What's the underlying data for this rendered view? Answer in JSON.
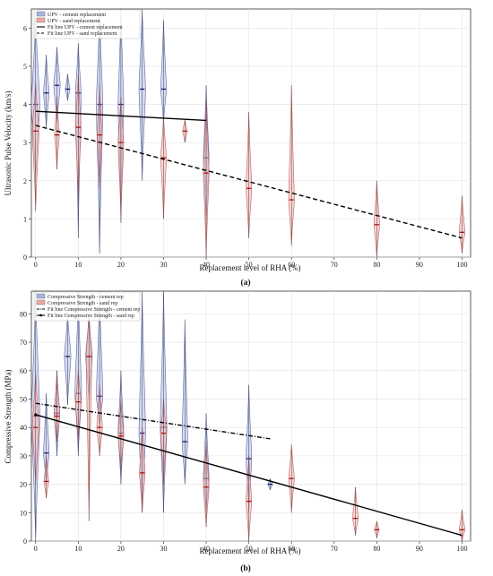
{
  "chart_data": [
    {
      "type": "violin",
      "caption": "(a)",
      "xlabel": "Replacement level of RHA (%)",
      "ylabel": "Ultrasonic Pulse Velocity (km/s)",
      "xlim": [
        -1,
        102
      ],
      "ylim": [
        0,
        6.5
      ],
      "xticks": [
        0,
        10,
        20,
        30,
        40,
        50,
        60,
        70,
        80,
        90,
        100
      ],
      "yticks": [
        0,
        1,
        2,
        3,
        4,
        5,
        6
      ],
      "grid": true,
      "legend_position": "top-left",
      "legend": [
        {
          "label": "UPV - cement replacement",
          "kind": "patch",
          "color": "#a8b4e0"
        },
        {
          "label": "UPV - sand replacement",
          "kind": "patch",
          "color": "#f0a8a0"
        },
        {
          "label": "Fit line UPV - cement replacement",
          "kind": "solid"
        },
        {
          "label": "Fit line UPV - sand replacement",
          "kind": "dashed"
        }
      ],
      "series": [
        {
          "name": "UPV - cement replacement",
          "color": "#7080c8",
          "values": [
            {
              "x": 0,
              "median": 4.0,
              "min": 2.0,
              "max": 6.3,
              "width": 1.8
            },
            {
              "x": 2.5,
              "median": 4.3,
              "min": 3.4,
              "max": 5.3,
              "width": 1.2
            },
            {
              "x": 5,
              "median": 4.5,
              "min": 3.5,
              "max": 5.5,
              "width": 1.4
            },
            {
              "x": 7.5,
              "median": 4.4,
              "min": 4.1,
              "max": 4.8,
              "width": 1.0
            },
            {
              "x": 10,
              "median": 4.3,
              "min": 0.5,
              "max": 5.6,
              "width": 1.2
            },
            {
              "x": 15,
              "median": 4.0,
              "min": 0.1,
              "max": 6.5,
              "width": 1.4
            },
            {
              "x": 20,
              "median": 4.0,
              "min": 0.9,
              "max": 6.5,
              "width": 1.2
            },
            {
              "x": 25,
              "median": 4.4,
              "min": 2.0,
              "max": 6.5,
              "width": 1.4
            },
            {
              "x": 30,
              "median": 4.4,
              "min": 3.5,
              "max": 6.2,
              "width": 1.2
            },
            {
              "x": 40,
              "median": 2.6,
              "min": 0.8,
              "max": 4.5,
              "width": 1.2
            }
          ]
        },
        {
          "name": "UPV - sand replacement",
          "color": "#e07070",
          "values": [
            {
              "x": 0,
              "median": 3.3,
              "min": 1.2,
              "max": 4.6,
              "width": 1.4
            },
            {
              "x": 5,
              "median": 3.2,
              "min": 2.3,
              "max": 4.2,
              "width": 1.0
            },
            {
              "x": 10,
              "median": 3.4,
              "min": 1.5,
              "max": 4.8,
              "width": 1.2
            },
            {
              "x": 15,
              "median": 3.2,
              "min": 1.8,
              "max": 4.5,
              "width": 1.0
            },
            {
              "x": 20,
              "median": 3.0,
              "min": 1.0,
              "max": 4.2,
              "width": 1.2
            },
            {
              "x": 30,
              "median": 2.6,
              "min": 1.0,
              "max": 3.7,
              "width": 1.2
            },
            {
              "x": 35,
              "median": 3.3,
              "min": 3.0,
              "max": 3.6,
              "width": 1.0
            },
            {
              "x": 40,
              "median": 2.2,
              "min": 0.0,
              "max": 4.2,
              "width": 1.2
            },
            {
              "x": 50,
              "median": 1.8,
              "min": 0.5,
              "max": 3.8,
              "width": 1.2
            },
            {
              "x": 60,
              "median": 1.5,
              "min": 0.3,
              "max": 4.5,
              "width": 1.2
            },
            {
              "x": 80,
              "median": 0.85,
              "min": 0.0,
              "max": 2.0,
              "width": 1.2
            },
            {
              "x": 100,
              "median": 0.65,
              "min": 0.1,
              "max": 1.6,
              "width": 1.2
            }
          ]
        }
      ],
      "fit_lines": [
        {
          "name": "Fit line UPV - cement replacement",
          "style": "solid",
          "x": [
            0,
            40
          ],
          "y": [
            3.82,
            3.58
          ]
        },
        {
          "name": "Fit line UPV - sand replacement",
          "style": "dashed",
          "x": [
            0,
            100
          ],
          "y": [
            3.45,
            0.5
          ]
        }
      ]
    },
    {
      "type": "violin",
      "caption": "(b)",
      "xlabel": "Replacement level of RHA (%)",
      "ylabel": "Compressive Strength (MPa)",
      "xlim": [
        -1,
        102
      ],
      "ylim": [
        0,
        88
      ],
      "xticks": [
        0,
        10,
        20,
        30,
        40,
        50,
        60,
        70,
        80,
        90,
        100
      ],
      "yticks": [
        0,
        10,
        20,
        30,
        40,
        50,
        60,
        70,
        80
      ],
      "grid": true,
      "legend_position": "top-left",
      "legend": [
        {
          "label": "Compressive Strength - cement rep",
          "kind": "patch",
          "color": "#a8b4e0"
        },
        {
          "label": "Compressive Strength - sand rep",
          "kind": "patch",
          "color": "#f0a8a0"
        },
        {
          "label": "Fit line Compressive Strength - cement rep",
          "kind": "dashdot"
        },
        {
          "label": "Fit line Compressive Strength - sand rep",
          "kind": "solid-marker"
        }
      ],
      "series": [
        {
          "name": "Compressive Strength - cement rep",
          "color": "#7080c8",
          "values": [
            {
              "x": 0,
              "median": 44,
              "min": 0,
              "max": 88,
              "width": 1.8
            },
            {
              "x": 2.5,
              "median": 31,
              "min": 20,
              "max": 52,
              "width": 1.2
            },
            {
              "x": 5,
              "median": 45,
              "min": 30,
              "max": 60,
              "width": 1.2
            },
            {
              "x": 7.5,
              "median": 65,
              "min": 48,
              "max": 80,
              "width": 1.4
            },
            {
              "x": 10,
              "median": 52,
              "min": 30,
              "max": 88,
              "width": 1.4
            },
            {
              "x": 12.5,
              "median": 65,
              "min": 50,
              "max": 80,
              "width": 1.4
            },
            {
              "x": 15,
              "median": 51,
              "min": 40,
              "max": 88,
              "width": 1.4
            },
            {
              "x": 20,
              "median": 38,
              "min": 20,
              "max": 60,
              "width": 1.2
            },
            {
              "x": 25,
              "median": 38,
              "min": 10,
              "max": 88,
              "width": 1.4
            },
            {
              "x": 30,
              "median": 40,
              "min": 10,
              "max": 88,
              "width": 1.4
            },
            {
              "x": 35,
              "median": 35,
              "min": 20,
              "max": 78,
              "width": 1.2
            },
            {
              "x": 40,
              "median": 22,
              "min": 10,
              "max": 45,
              "width": 1.2
            },
            {
              "x": 50,
              "median": 29,
              "min": 10,
              "max": 55,
              "width": 1.2
            },
            {
              "x": 55,
              "median": 20,
              "min": 18,
              "max": 22,
              "width": 1.0
            }
          ]
        },
        {
          "name": "Compressive Strength - sand rep",
          "color": "#e07070",
          "values": [
            {
              "x": 0,
              "median": 40,
              "min": 20,
              "max": 60,
              "width": 1.4
            },
            {
              "x": 2.5,
              "median": 21,
              "min": 15,
              "max": 30,
              "width": 1.0
            },
            {
              "x": 5,
              "median": 44,
              "min": 35,
              "max": 60,
              "width": 1.2
            },
            {
              "x": 10,
              "median": 49,
              "min": 35,
              "max": 60,
              "width": 1.2
            },
            {
              "x": 12.5,
              "median": 65,
              "min": 7,
              "max": 80,
              "width": 1.2
            },
            {
              "x": 15,
              "median": 40,
              "min": 30,
              "max": 55,
              "width": 1.2
            },
            {
              "x": 20,
              "median": 37,
              "min": 25,
              "max": 50,
              "width": 1.2
            },
            {
              "x": 25,
              "median": 24,
              "min": 10,
              "max": 40,
              "width": 1.2
            },
            {
              "x": 30,
              "median": 38,
              "min": 20,
              "max": 50,
              "width": 1.2
            },
            {
              "x": 40,
              "median": 19,
              "min": 5,
              "max": 35,
              "width": 1.2
            },
            {
              "x": 50,
              "median": 14,
              "min": 0,
              "max": 30,
              "width": 1.2
            },
            {
              "x": 60,
              "median": 22,
              "min": 10,
              "max": 34,
              "width": 1.2
            },
            {
              "x": 75,
              "median": 8,
              "min": 2,
              "max": 19,
              "width": 1.2
            },
            {
              "x": 80,
              "median": 4,
              "min": 1,
              "max": 7,
              "width": 1.0
            },
            {
              "x": 100,
              "median": 4,
              "min": 0,
              "max": 11,
              "width": 1.2
            }
          ]
        }
      ],
      "fit_lines": [
        {
          "name": "Fit line Compressive Strength - cement rep",
          "style": "dashdot",
          "x": [
            0,
            55
          ],
          "y": [
            48.5,
            36
          ]
        },
        {
          "name": "Fit line Compressive Strength - sand rep",
          "style": "solid",
          "x": [
            0,
            100
          ],
          "y": [
            44.5,
            2
          ]
        }
      ]
    }
  ]
}
